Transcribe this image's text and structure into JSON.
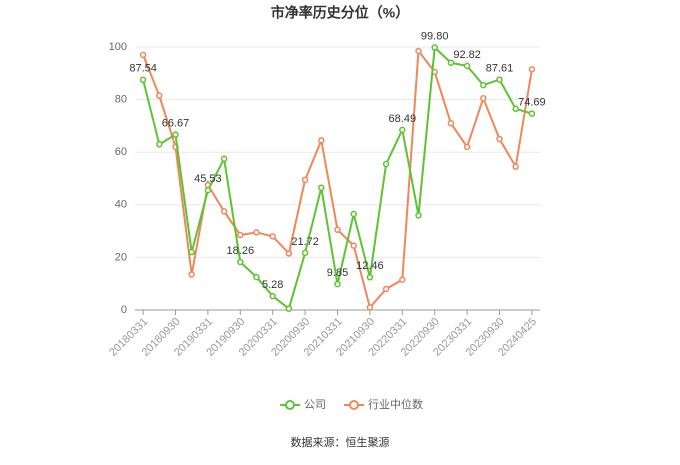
{
  "chart_data": {
    "type": "line",
    "title": "市净率历史分位（%）",
    "source": "数据来源：恒生聚源",
    "categories": [
      "20180331",
      null,
      "20180930",
      null,
      "20190331",
      null,
      "20190930",
      null,
      "20200331",
      null,
      "20200930",
      null,
      "20210331",
      null,
      "20210930",
      null,
      "20220331",
      null,
      "20220930",
      null,
      "20230331",
      null,
      "20230930",
      null,
      "20240425"
    ],
    "series": [
      {
        "name": "公司",
        "color": "#5cc431",
        "values": [
          87.54,
          63,
          66.67,
          22,
          45.53,
          57.5,
          18.26,
          12.5,
          5.28,
          0.5,
          21.72,
          46.5,
          9.85,
          36.5,
          12.46,
          55.5,
          68.49,
          36,
          99.8,
          94,
          92.82,
          85.5,
          87.61,
          76.5,
          74.69
        ],
        "value_labels": [
          "87.54",
          null,
          "66.67",
          null,
          "45.53",
          null,
          "18.26",
          null,
          "5.28",
          null,
          "21.72",
          null,
          "9.85",
          null,
          "12.46",
          null,
          "68.49",
          null,
          "99.80",
          null,
          "92.82",
          null,
          "87.61",
          null,
          "74.69"
        ]
      },
      {
        "name": "行业中位数",
        "color": "#f0875a",
        "values": [
          97,
          81.5,
          62,
          13.5,
          47.5,
          37.5,
          28.5,
          29.5,
          28,
          21.5,
          49.5,
          64.5,
          30.5,
          24.5,
          1,
          8,
          11.5,
          98.5,
          90.5,
          71,
          62,
          80.5,
          65,
          54.5,
          91.5
        ]
      }
    ],
    "ylim": [
      0,
      100
    ],
    "yticks": [
      0,
      20,
      40,
      60,
      80,
      100
    ],
    "grid": true,
    "legend": "bottom"
  }
}
